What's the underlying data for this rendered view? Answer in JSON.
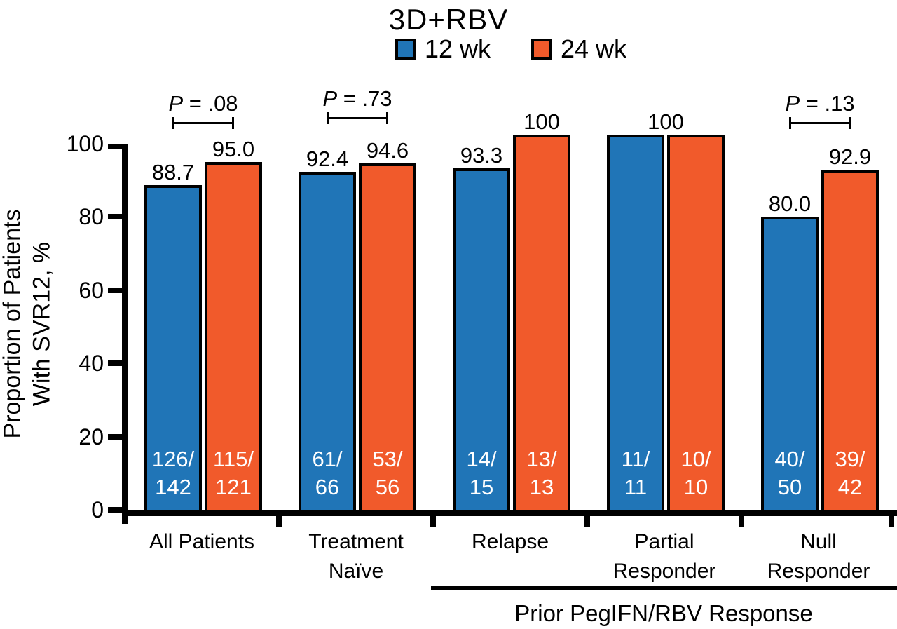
{
  "chart_data": {
    "type": "bar",
    "title": "3D+RBV",
    "ylabel_lines": [
      "Proportion of Patients",
      "With SVR12, %"
    ],
    "ylim": [
      0,
      100
    ],
    "yticks": [
      0,
      20,
      40,
      60,
      80,
      100
    ],
    "grid": false,
    "legend_position": "top",
    "categories": [
      "All Patients",
      "Treatment Naïve",
      "Relapse",
      "Partial Responder",
      "Null Responder"
    ],
    "category_lines": [
      [
        "All Patients"
      ],
      [
        "Treatment",
        "Naïve"
      ],
      [
        "Relapse"
      ],
      [
        "Partial",
        "Responder"
      ],
      [
        "Null",
        "Responder"
      ]
    ],
    "series": [
      {
        "name": "12 wk",
        "color": "#2075B7",
        "values": [
          88.7,
          92.4,
          93.3,
          100,
          80.0
        ],
        "value_labels": [
          "88.7",
          "92.4",
          "93.3",
          "",
          "80.0"
        ],
        "fractions": [
          "126/142",
          "61/66",
          "14/15",
          "11/11",
          "40/50"
        ]
      },
      {
        "name": "24 wk",
        "color": "#F15A2B",
        "values": [
          95.0,
          94.6,
          100,
          100,
          92.9
        ],
        "value_labels": [
          "95.0",
          "94.6",
          "100",
          "",
          "92.9"
        ],
        "fractions": [
          "115/121",
          "53/56",
          "13/13",
          "10/10",
          "39/42"
        ]
      }
    ],
    "shared_value_labels": [
      {
        "category_index": 3,
        "label": "100"
      }
    ],
    "p_values": [
      {
        "category_index": 0,
        "label": "P = .08"
      },
      {
        "category_index": 1,
        "label": "P = .73"
      },
      {
        "category_index": 4,
        "label": "P = .13"
      }
    ],
    "group_annotation": {
      "label": "Prior PegIFN/RBV Response",
      "span_categories": [
        "Relapse",
        "Partial Responder",
        "Null Responder"
      ]
    },
    "bar_border_color": "#000000",
    "in_bar_text_color": "#ffffff",
    "axis_color": "#000000"
  }
}
